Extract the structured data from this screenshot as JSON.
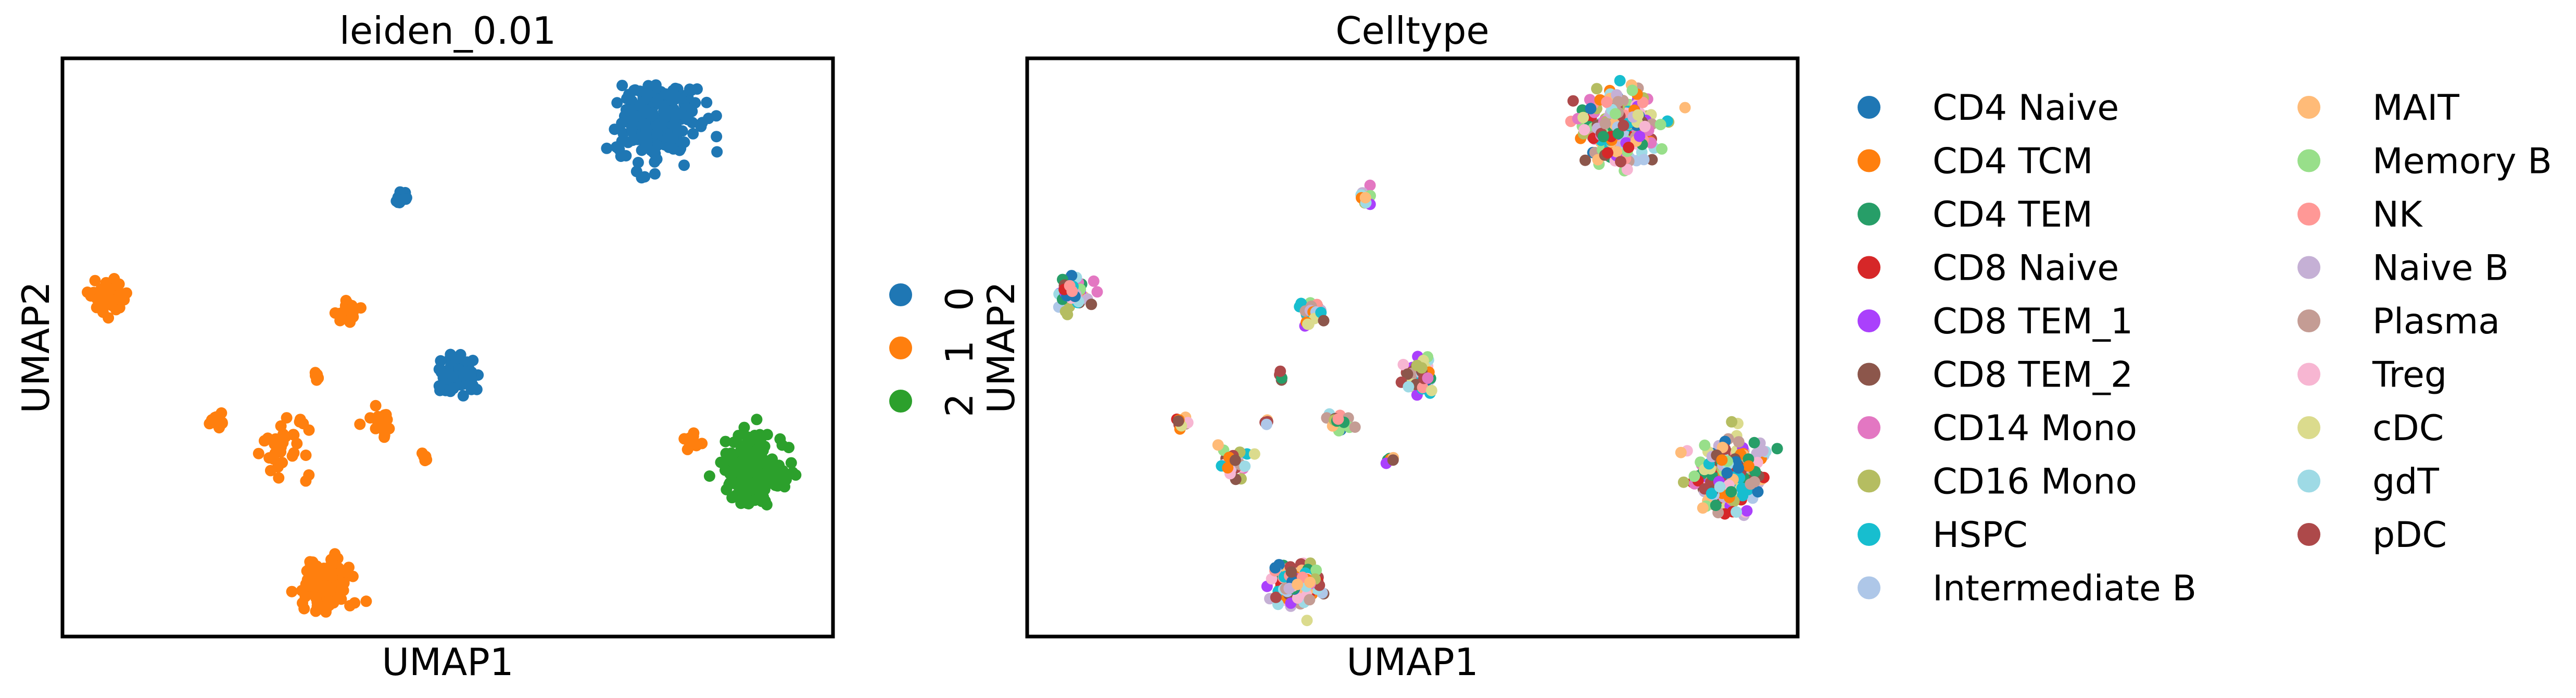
{
  "chart_data": [
    {
      "type": "scatter",
      "title": "leiden_0.01",
      "xlabel": "UMAP1",
      "ylabel": "UMAP2",
      "grid": false,
      "legend": {
        "placement": "right",
        "entries": [
          "0",
          "1",
          "2"
        ],
        "note": "legend labels partially hidden behind neighbouring axis label"
      },
      "palette": {
        "0": "#1f77b4",
        "1": "#ff7f0e",
        "2": "#2ca02c"
      },
      "xlim": [
        0,
        100
      ],
      "ylim": [
        0,
        100
      ],
      "series": [
        {
          "name": "0",
          "clusters": [
            {
              "x": 77,
              "y": 89,
              "spread": 3.4,
              "count": 220
            },
            {
              "x": 51,
              "y": 45,
              "spread": 1.6,
              "count": 70
            },
            {
              "x": 44,
              "y": 76,
              "spread": 0.6,
              "count": 18
            }
          ]
        },
        {
          "name": "1",
          "clusters": [
            {
              "x": 34.5,
              "y": 9,
              "spread": 2.1,
              "count": 140
            },
            {
              "x": 6,
              "y": 59,
              "spread": 1.5,
              "count": 55
            },
            {
              "x": 37,
              "y": 56,
              "spread": 0.9,
              "count": 30
            },
            {
              "x": 28,
              "y": 32,
              "spread": 2.6,
              "count": 30
            },
            {
              "x": 20,
              "y": 37,
              "spread": 0.7,
              "count": 14
            },
            {
              "x": 41,
              "y": 37,
              "spread": 1.4,
              "count": 16
            },
            {
              "x": 33,
              "y": 45,
              "spread": 0.4,
              "count": 6
            },
            {
              "x": 31,
              "y": 37,
              "spread": 0.3,
              "count": 4
            },
            {
              "x": 47,
              "y": 31,
              "spread": 0.4,
              "count": 6
            },
            {
              "x": 82,
              "y": 34,
              "spread": 0.8,
              "count": 10
            }
          ]
        },
        {
          "name": "2",
          "clusters": [
            {
              "x": 90,
              "y": 29,
              "spread": 2.8,
              "count": 220
            }
          ]
        }
      ]
    },
    {
      "type": "scatter",
      "title": "Celltype",
      "xlabel": "UMAP1",
      "ylabel": "UMAP2",
      "grid": false,
      "legend": {
        "placement": "right",
        "columns": 2
      },
      "categories": [
        {
          "name": "CD4 Naive",
          "color": "#1f77b4"
        },
        {
          "name": "CD4 TCM",
          "color": "#ff7f0e"
        },
        {
          "name": "CD4 TEM",
          "color": "#279e68"
        },
        {
          "name": "CD8 Naive",
          "color": "#d62728"
        },
        {
          "name": "CD8 TEM_1",
          "color": "#aa40fc"
        },
        {
          "name": "CD8 TEM_2",
          "color": "#8c564b"
        },
        {
          "name": "CD14 Mono",
          "color": "#e377c2"
        },
        {
          "name": "CD16 Mono",
          "color": "#b5bd61"
        },
        {
          "name": "HSPC",
          "color": "#17becf"
        },
        {
          "name": "Intermediate B",
          "color": "#aec7e8"
        },
        {
          "name": "MAIT",
          "color": "#ffbb78"
        },
        {
          "name": "Memory B",
          "color": "#98df8a"
        },
        {
          "name": "NK",
          "color": "#ff9896"
        },
        {
          "name": "Naive B",
          "color": "#c5b0d5"
        },
        {
          "name": "Plasma",
          "color": "#c49c94"
        },
        {
          "name": "Treg",
          "color": "#f7b6d2"
        },
        {
          "name": "cDC",
          "color": "#dbdb8d"
        },
        {
          "name": "gdT",
          "color": "#9edae5"
        },
        {
          "name": "pDC",
          "color": "#ad494a"
        }
      ],
      "xlim": [
        0,
        100
      ],
      "ylim": [
        0,
        100
      ],
      "clusters": [
        {
          "x": 77,
          "y": 88,
          "spread": 3.2,
          "count": 260
        },
        {
          "x": 91,
          "y": 28,
          "spread": 2.9,
          "count": 260
        },
        {
          "x": 35,
          "y": 9,
          "spread": 1.9,
          "count": 140
        },
        {
          "x": 51,
          "y": 45,
          "spread": 1.6,
          "count": 60
        },
        {
          "x": 6,
          "y": 59,
          "spread": 1.4,
          "count": 50
        },
        {
          "x": 37,
          "y": 56,
          "spread": 0.9,
          "count": 30
        },
        {
          "x": 44,
          "y": 76,
          "spread": 0.6,
          "count": 16
        },
        {
          "x": 27,
          "y": 30,
          "spread": 1.4,
          "count": 30
        },
        {
          "x": 20,
          "y": 37,
          "spread": 0.6,
          "count": 12
        },
        {
          "x": 41,
          "y": 37,
          "spread": 1.2,
          "count": 14
        },
        {
          "x": 33,
          "y": 45,
          "spread": 0.4,
          "count": 6
        },
        {
          "x": 31,
          "y": 37,
          "spread": 0.3,
          "count": 4
        },
        {
          "x": 47,
          "y": 31,
          "spread": 0.4,
          "count": 6
        }
      ]
    }
  ]
}
